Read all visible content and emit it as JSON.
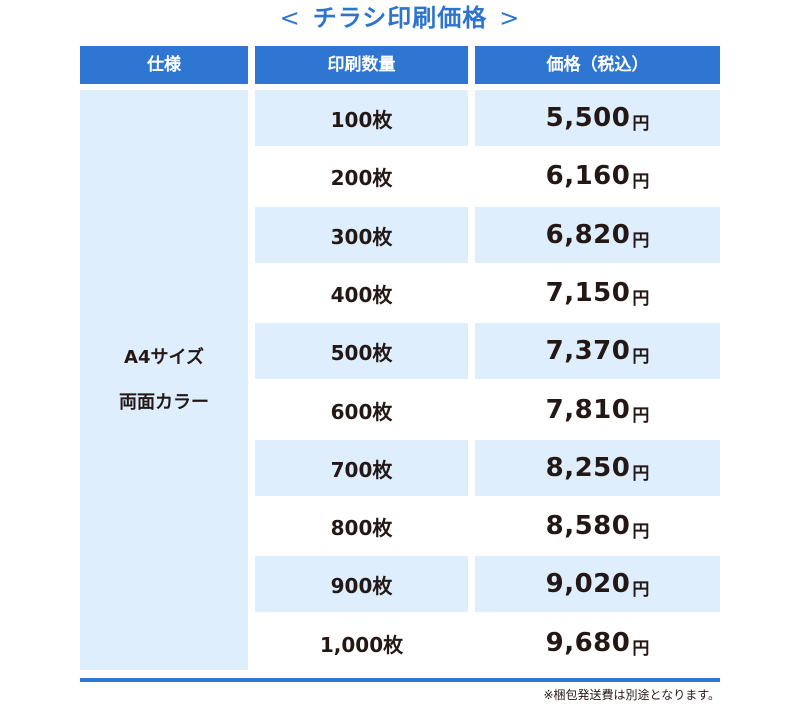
{
  "title": {
    "left_bracket": "<",
    "text": "チラシ印刷価格",
    "right_bracket": ">"
  },
  "headers": {
    "spec": "仕様",
    "quantity": "印刷数量",
    "price": "価格（税込）"
  },
  "spec": {
    "line1": "A4サイズ",
    "line2": "両面カラー"
  },
  "rows": [
    {
      "quantity": "100枚",
      "price": "5,500",
      "unit": "円"
    },
    {
      "quantity": "200枚",
      "price": "6,160",
      "unit": "円"
    },
    {
      "quantity": "300枚",
      "price": "6,820",
      "unit": "円"
    },
    {
      "quantity": "400枚",
      "price": "7,150",
      "unit": "円"
    },
    {
      "quantity": "500枚",
      "price": "7,370",
      "unit": "円"
    },
    {
      "quantity": "600枚",
      "price": "7,810",
      "unit": "円"
    },
    {
      "quantity": "700枚",
      "price": "8,250",
      "unit": "円"
    },
    {
      "quantity": "800枚",
      "price": "8,580",
      "unit": "円"
    },
    {
      "quantity": "900枚",
      "price": "9,020",
      "unit": "円"
    },
    {
      "quantity": "1,000枚",
      "price": "9,680",
      "unit": "円"
    }
  ],
  "note": "※梱包発送費は別途となります。",
  "colors": {
    "accent": "#2e76d2",
    "title": "#2d75cc",
    "shade": "#deeefc",
    "text": "#231815"
  }
}
